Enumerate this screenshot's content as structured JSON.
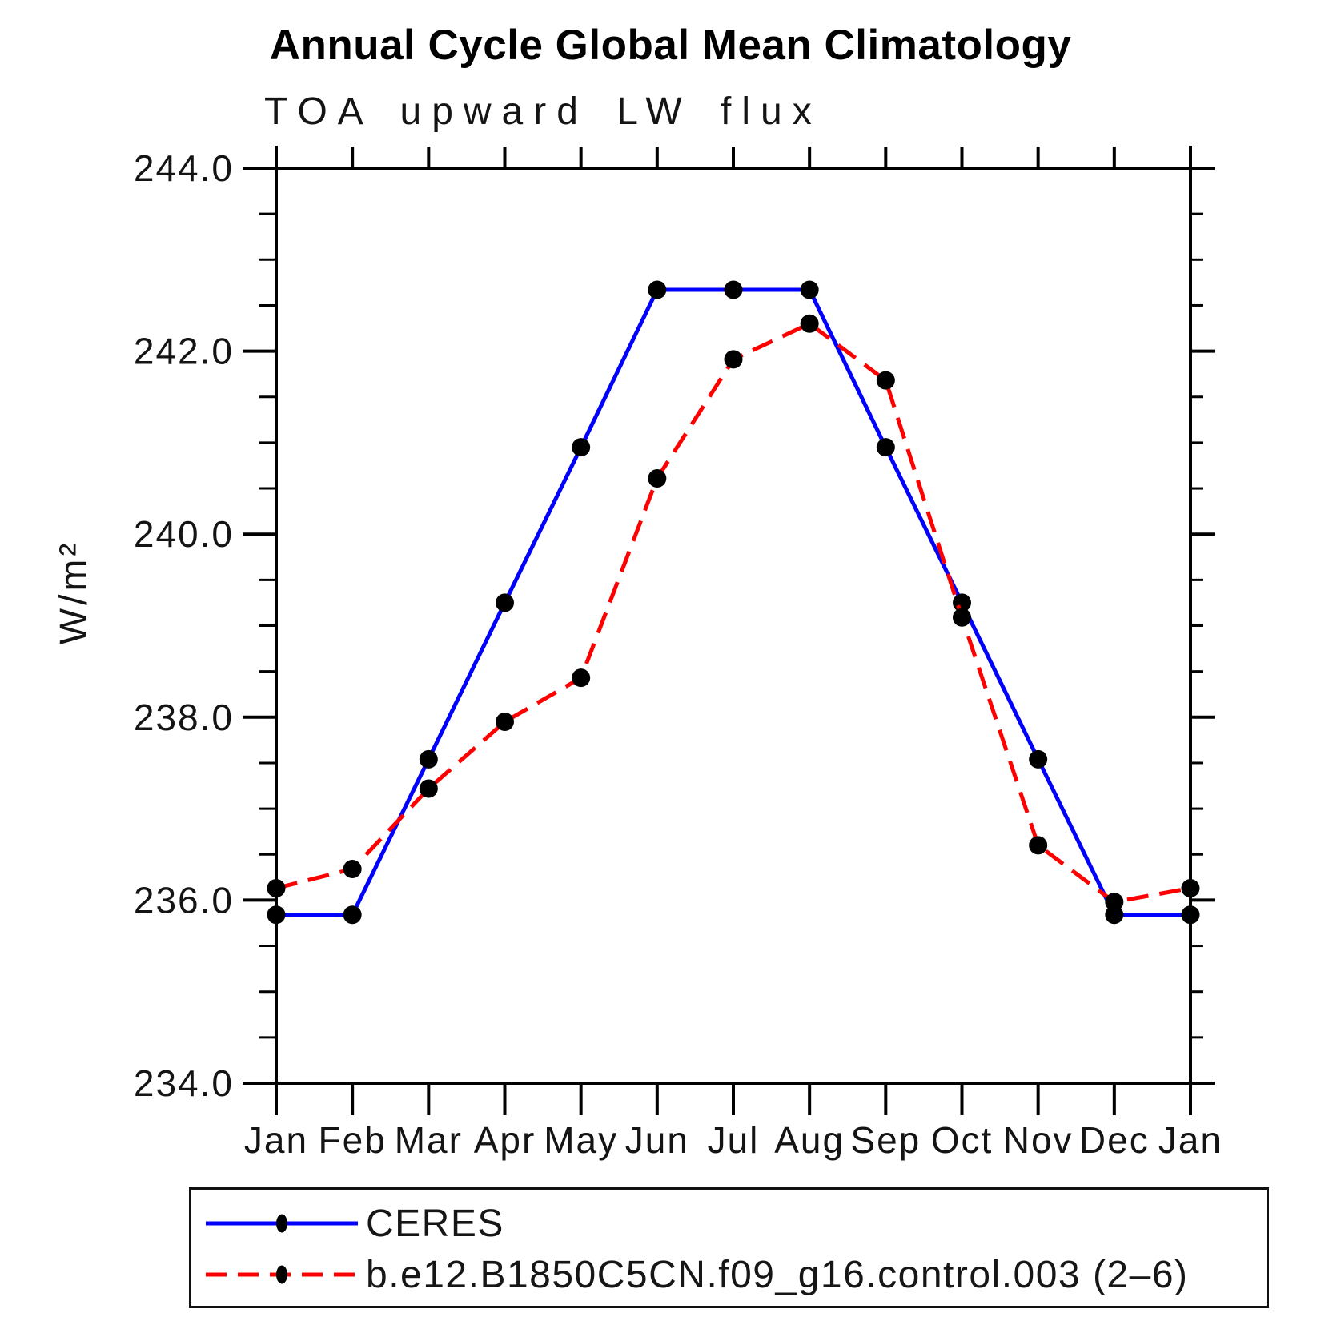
{
  "chart_data": {
    "type": "line",
    "title": "Annual Cycle Global Mean Climatology",
    "subtitle": "TOA upward LW flux",
    "ylabel": "W/m²",
    "xlabel": "",
    "x_categories": [
      "Jan",
      "Feb",
      "Mar",
      "Apr",
      "May",
      "Jun",
      "Jul",
      "Aug",
      "Sep",
      "Oct",
      "Nov",
      "Dec",
      "Jan"
    ],
    "ylim": [
      234.0,
      244.0
    ],
    "ytick_major_interval": 2.0,
    "ytick_minor_interval": 0.5,
    "ytick_labels": [
      "234.0",
      "236.0",
      "238.0",
      "240.0",
      "242.0",
      "244.0"
    ],
    "grid": false,
    "legend_position": "bottom",
    "axis_color": "#000000",
    "series": [
      {
        "name": "CERES",
        "line_color": "#0000ff",
        "line_style": "solid",
        "marker": "filled-circle",
        "marker_color": "#000000",
        "values": [
          235.84,
          235.84,
          237.54,
          239.25,
          240.95,
          242.67,
          242.67,
          242.67,
          240.95,
          239.25,
          237.54,
          235.84,
          235.84
        ]
      },
      {
        "name": "b.e12.B1850C5CN.f09_g16.control.003 (2–6)",
        "line_color": "#ff0000",
        "line_style": "dashed",
        "marker": "filled-circle",
        "marker_color": "#000000",
        "values": [
          236.13,
          236.34,
          237.22,
          237.95,
          238.43,
          240.61,
          241.91,
          242.3,
          241.68,
          239.09,
          236.6,
          235.98,
          236.13
        ]
      }
    ]
  }
}
